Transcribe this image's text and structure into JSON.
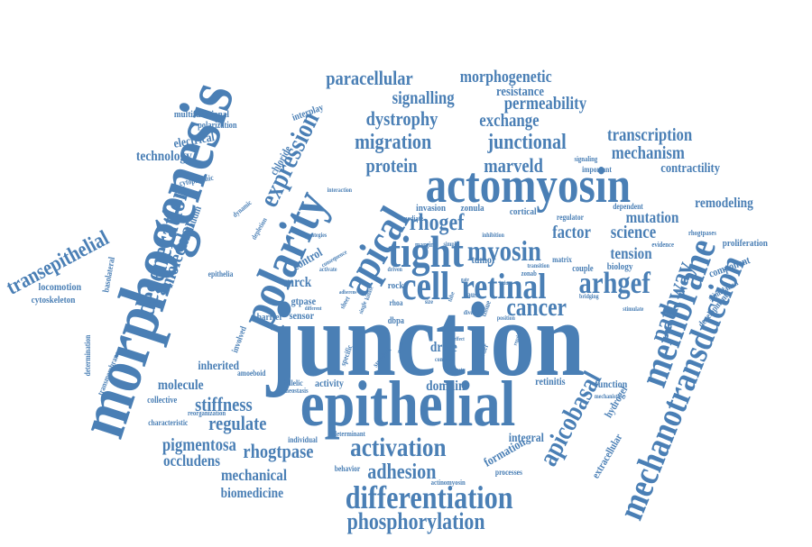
{
  "color": "#4a7fb5",
  "words": [
    "junction",
    "epithelial",
    "morphogenesis",
    "polarity",
    "actomyosin",
    "apical",
    "tight",
    "cell",
    "retinal",
    "arhgef",
    "membrane",
    "mechanotransduction",
    "differentiation",
    "phosphorylation",
    "activation",
    "adhesion",
    "apicobasal",
    "pathway",
    "cancer",
    "myosin",
    "rhogef",
    "expression",
    "degeneration",
    "transepithelial",
    "molecular",
    "protein",
    "marveld",
    "migration",
    "junctional",
    "dystrophy",
    "exchange",
    "permeability",
    "signalling",
    "resistance",
    "paracellular",
    "morphogenetic",
    "transcription",
    "mechanism",
    "contractility",
    "remodeling",
    "mutation",
    "factor",
    "science",
    "tension",
    "stiffness",
    "regulate",
    "rhogtpase",
    "pigmentosa",
    "occludens",
    "mechanical",
    "biomedicine",
    "molecule",
    "inherited",
    "collective",
    "technology",
    "electrical",
    "multifunctional",
    "polarization",
    "interplay",
    "chloride",
    "claudin",
    "cytoplasmic",
    "locomotion",
    "cytoskeleton",
    "basolateral",
    "epithelia",
    "determination",
    "transmembrane",
    "mrck",
    "gtpase",
    "sensor",
    "control",
    "barrier",
    "involved",
    "amoeboid",
    "biallelic",
    "homeostasis",
    "activity",
    "individual",
    "reorganization",
    "characteristic",
    "determinant",
    "behavior",
    "actinomyosin",
    "processes",
    "formation",
    "integral",
    "domain",
    "drive",
    "retinitis",
    "function",
    "hydrogel",
    "extracellular",
    "proliferation",
    "component",
    "stimulation",
    "development",
    "biology",
    "couple",
    "matrix",
    "zonab",
    "tumor",
    "rock",
    "rhoa",
    "dbpa",
    "cortical",
    "invasion",
    "zonula",
    "regulator",
    "dependent",
    "evidence",
    "rhogtpases",
    "signaling",
    "important",
    "mediate",
    "inhibition",
    "interaction",
    "margin",
    "simple",
    "specific",
    "survival",
    "cause",
    "position",
    "complex",
    "mechanistic",
    "bridging",
    "stimulate",
    "strategies",
    "depletion",
    "dynamic",
    "kinase",
    "tissue",
    "sheet",
    "activate",
    "consequence",
    "driven",
    "different",
    "adherens",
    "transition",
    "single",
    "gate",
    "size",
    "tube",
    "border",
    "regulation",
    "vertebrate",
    "effect",
    "master",
    "induce",
    "diverse"
  ]
}
